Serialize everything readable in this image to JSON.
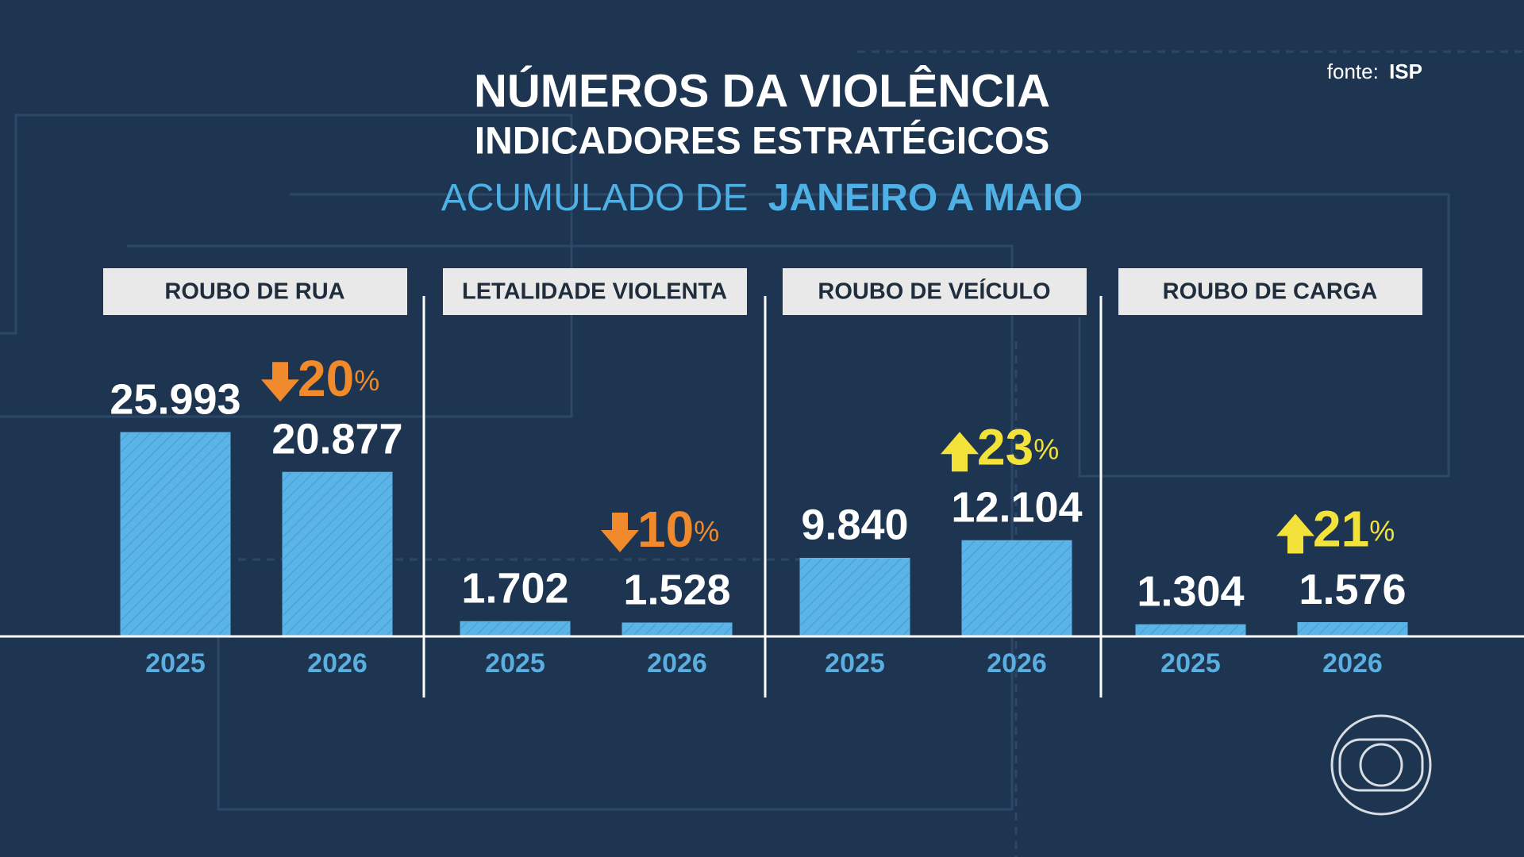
{
  "header": {
    "title": "NÚMEROS DA VIOLÊNCIA",
    "subtitle": "INDICADORES ESTRATÉGICOS",
    "period": [
      "ACUMULADO DE",
      "JANEIRO A MAIO"
    ],
    "source": [
      "fonte:",
      "ISP"
    ]
  },
  "chart_data": [
    {
      "type": "bar",
      "title": "ROUBO DE RUA",
      "categories": [
        "2025",
        "2026"
      ],
      "values": [
        25993,
        20877
      ],
      "value_labels": [
        "25.993",
        "20.877"
      ],
      "color": "#5ab4e8",
      "change": 20,
      "change_unit": "%",
      "change_direction": "down",
      "change_color": "#f08a2c"
    },
    {
      "type": "bar",
      "title": "LETALIDADE VIOLENTA",
      "categories": [
        "2025",
        "2026"
      ],
      "values": [
        1702,
        1528
      ],
      "value_labels": [
        "1.702",
        "1.528"
      ],
      "color": "#5ab4e8",
      "change": 10,
      "change_unit": "%",
      "change_direction": "down",
      "change_color": "#f08a2c"
    },
    {
      "type": "bar",
      "title": "ROUBO DE VEÍCULO",
      "categories": [
        "2025",
        "2026"
      ],
      "values": [
        9840,
        12104
      ],
      "value_labels": [
        "9.840",
        "12.104"
      ],
      "color": "#5ab4e8",
      "change": 23,
      "change_unit": "%",
      "change_direction": "up",
      "change_color": "#f2e23a"
    },
    {
      "type": "bar",
      "title": "ROUBO DE CARGA",
      "categories": [
        "2025",
        "2026"
      ],
      "values": [
        1304,
        1576
      ],
      "value_labels": [
        "1.304",
        "1.576"
      ],
      "color": "#5ab4e8",
      "change": 21,
      "change_unit": "%",
      "change_direction": "up",
      "change_color": "#f2e23a"
    }
  ]
}
